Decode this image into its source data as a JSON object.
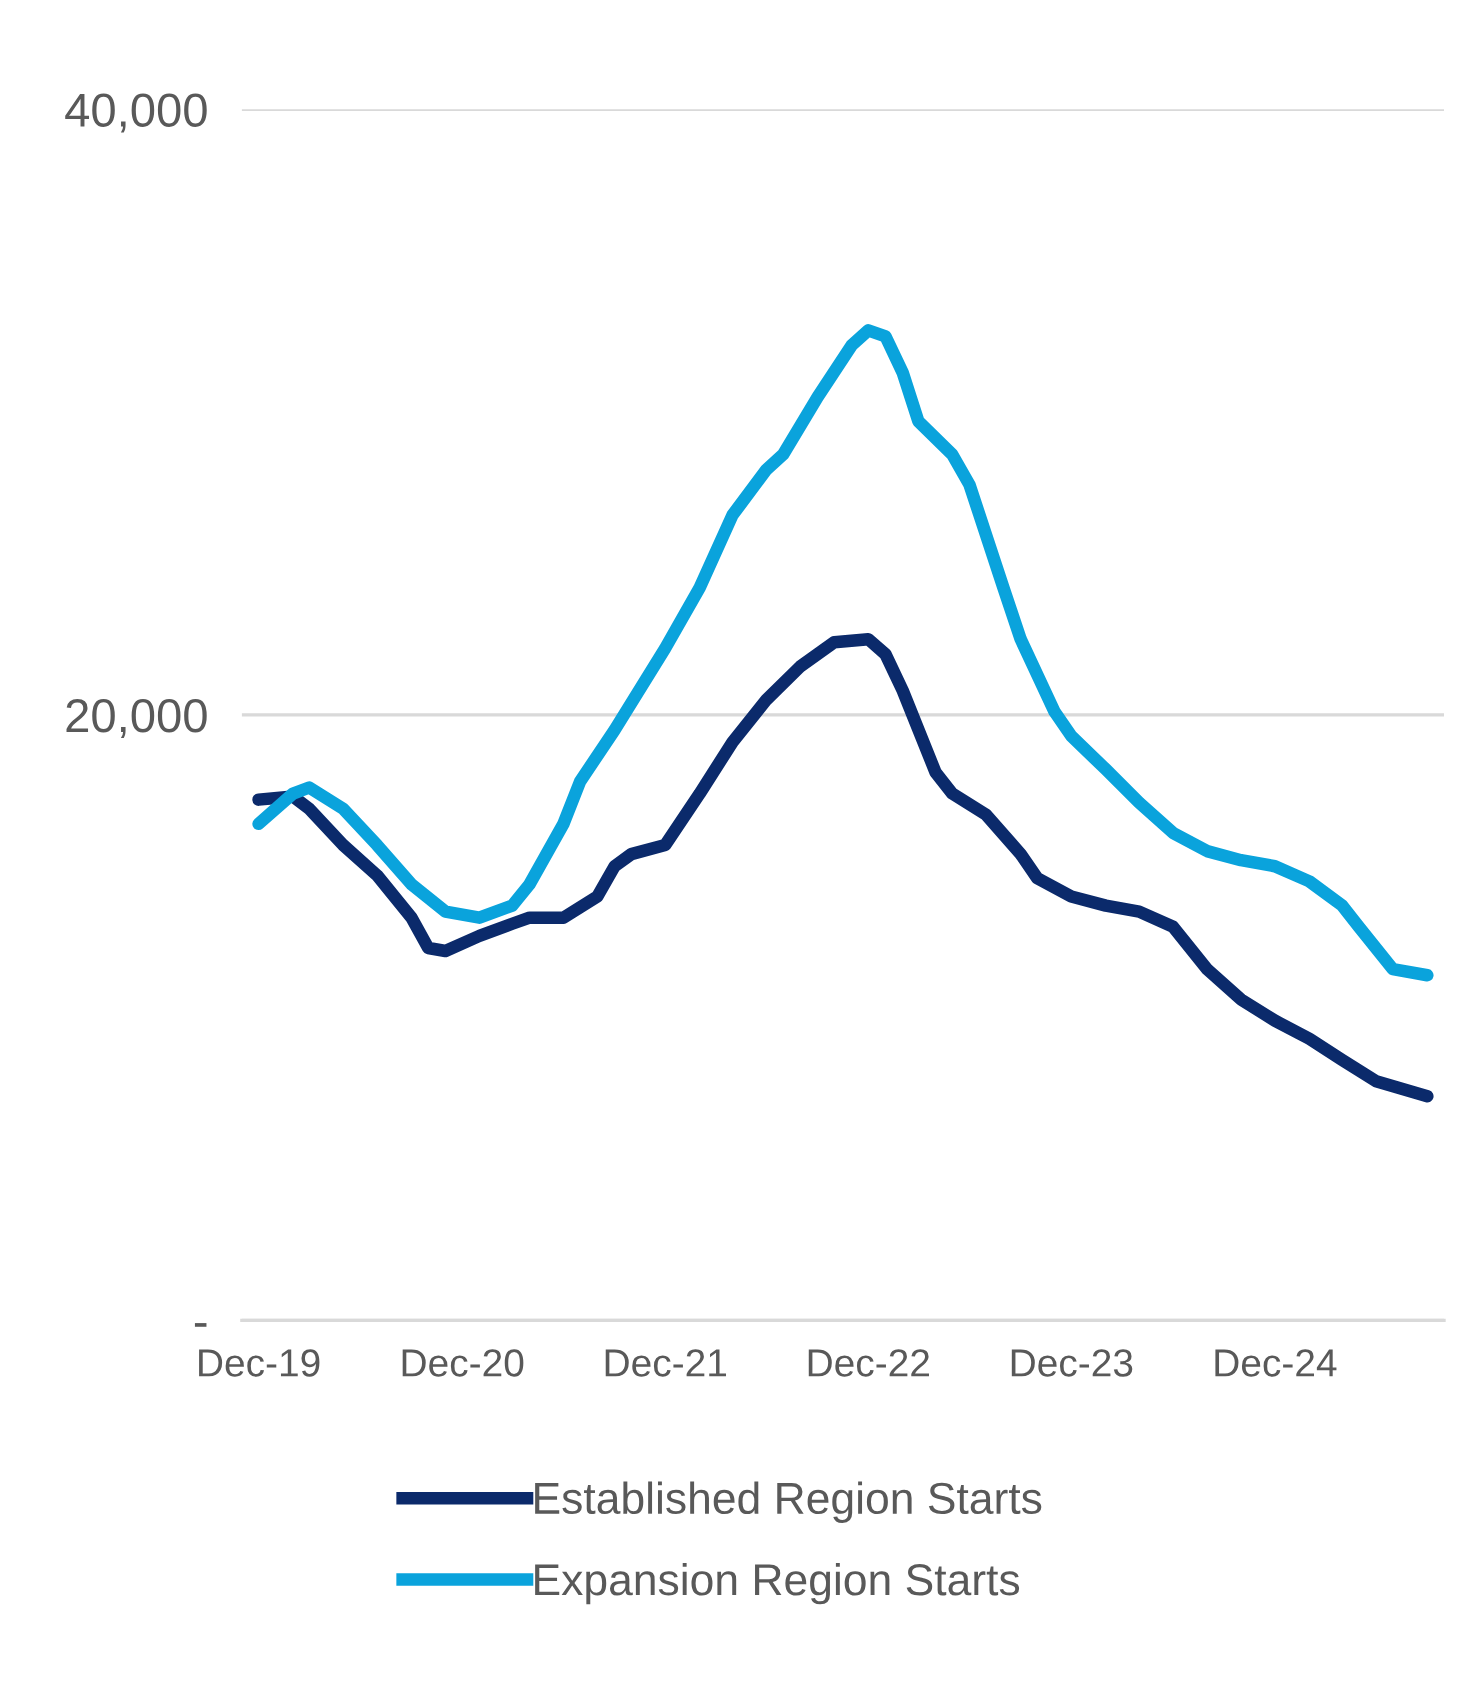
{
  "chart_data": {
    "type": "line",
    "x": [
      "2019-12",
      "2020-02",
      "2020-03",
      "2020-05",
      "2020-07",
      "2020-09",
      "2020-10",
      "2020-11",
      "2021-01",
      "2021-03",
      "2021-04",
      "2021-06",
      "2021-08",
      "2021-09",
      "2021-10",
      "2021-12",
      "2022-02",
      "2022-04",
      "2022-06",
      "2022-08",
      "2022-10",
      "2022-12",
      "2023-01",
      "2023-02",
      "2023-04",
      "2023-05",
      "2023-07",
      "2023-09",
      "2023-10",
      "2023-12",
      "2024-02",
      "2024-04",
      "2024-06",
      "2024-08",
      "2024-10",
      "2024-12",
      "2025-02",
      "2025-04",
      "2025-06",
      "2025-09"
    ],
    "series": [
      {
        "name": "Established Region Starts",
        "color": "#0b2a6b",
        "values": [
          17200,
          17300,
          16900,
          15700,
          14700,
          13300,
          12300,
          12200,
          12700,
          13100,
          13300,
          13300,
          14000,
          15000,
          15400,
          15700,
          17400,
          19100,
          20500,
          21600,
          22400,
          22500,
          22000,
          20800,
          18100,
          17400,
          16700,
          15400,
          14600,
          14000,
          13700,
          13500,
          13000,
          11600,
          10600,
          9900,
          9300,
          8600,
          7900,
          7400
        ]
      },
      {
        "name": "Expansion Region Starts",
        "color": "#0aa3dc",
        "x": [
          "2019-12",
          "2020-02",
          "2020-03",
          "2020-05",
          "2020-07",
          "2020-09",
          "2020-11",
          "2021-01",
          "2021-03",
          "2021-04",
          "2021-06",
          "2021-07",
          "2021-09",
          "2021-12",
          "2022-02",
          "2022-04",
          "2022-06",
          "2022-07",
          "2022-09",
          "2022-11",
          "2022-12",
          "2023-01",
          "2023-02",
          "2023-03",
          "2023-05",
          "2023-06",
          "2023-08",
          "2023-09",
          "2023-11",
          "2023-12",
          "2024-02",
          "2024-04",
          "2024-06",
          "2024-08",
          "2024-10",
          "2024-12",
          "2025-02",
          "2025-04",
          "2025-05",
          "2025-07",
          "2025-09"
        ],
        "values": [
          16400,
          17400,
          17600,
          16900,
          15700,
          14400,
          13500,
          13300,
          13700,
          14400,
          16400,
          17800,
          19500,
          22200,
          24200,
          26600,
          28100,
          28600,
          30500,
          32200,
          32700,
          32500,
          31300,
          29700,
          28600,
          27600,
          24200,
          22500,
          20100,
          19300,
          18200,
          17100,
          16100,
          15500,
          15200,
          15000,
          14500,
          13700,
          13000,
          11600,
          11400
        ]
      }
    ],
    "xlim": [
      "2019-11",
      "2025-10"
    ],
    "xticks": [
      {
        "value": "2019-12",
        "label": "Dec-19"
      },
      {
        "value": "2020-12",
        "label": "Dec-20"
      },
      {
        "value": "2021-12",
        "label": "Dec-21"
      },
      {
        "value": "2022-12",
        "label": "Dec-22"
      },
      {
        "value": "2023-12",
        "label": "Dec-23"
      },
      {
        "value": "2024-12",
        "label": "Dec-24"
      }
    ],
    "ylim": [
      0,
      40000
    ],
    "yticks": [
      {
        "value": 0,
        "label": "-"
      },
      {
        "value": 20000,
        "label": "20,000"
      },
      {
        "value": 40000,
        "label": "40,000"
      }
    ],
    "grid": "y",
    "legend": "bottom",
    "marker": "none",
    "line_style": "solid"
  }
}
